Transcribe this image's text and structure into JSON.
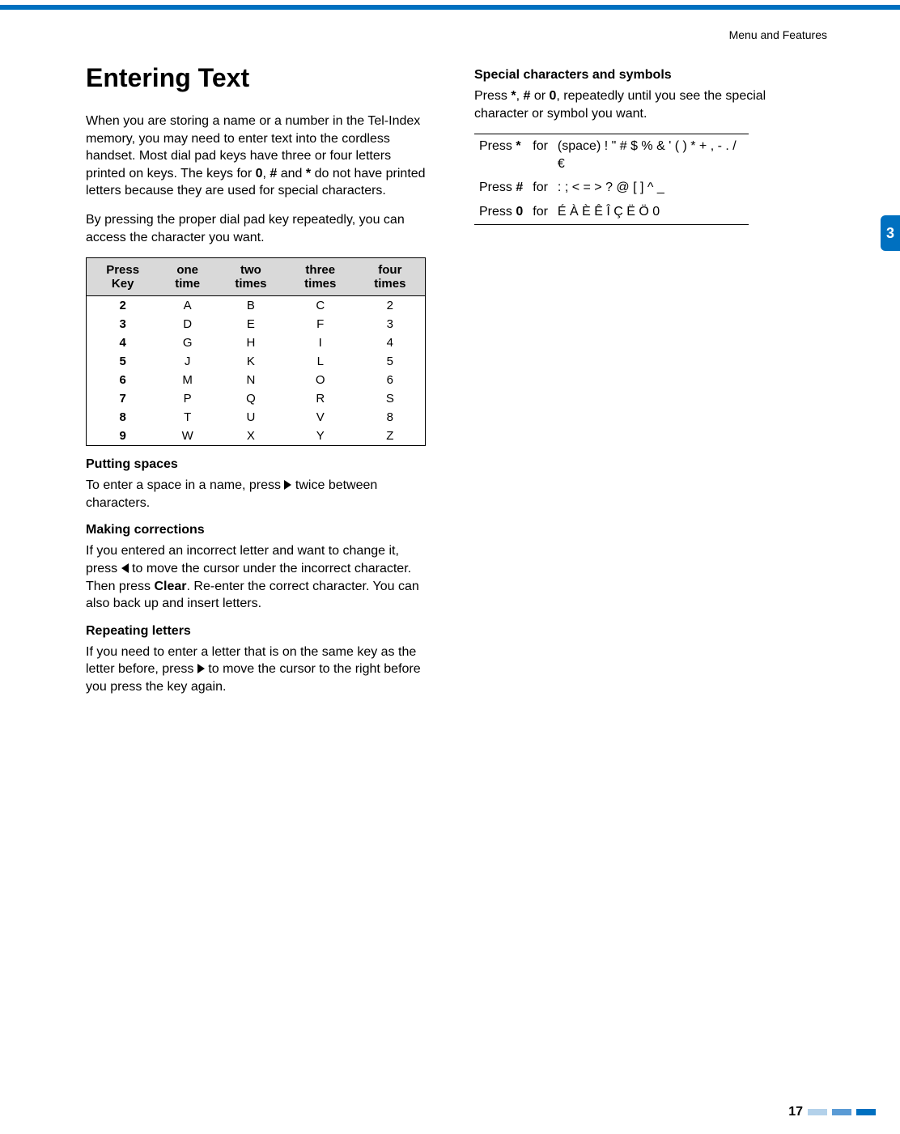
{
  "colors": {
    "accent": "#0070c0",
    "table_header_bg": "#d9d9d9",
    "text": "#000000",
    "background": "#ffffff",
    "pagebar_light": "#b3d1ea",
    "pagebar_mid": "#5a9bd5",
    "pagebar_dark": "#0070c0"
  },
  "header": {
    "section": "Menu and Features"
  },
  "side_tab": "3",
  "left": {
    "title": "Entering Text",
    "intro1": "When you are storing a name or a number in the Tel-Index memory, you may need to enter text into the cordless handset. Most dial pad keys have three or four letters printed on keys. The keys for 0, # and * do not have printed letters because they are used for special characters.",
    "intro2": "By pressing the proper dial pad key repeatedly, you can access the character you want.",
    "table": {
      "headers": [
        "Press Key",
        "one time",
        "two times",
        "three times",
        "four times"
      ],
      "rows": [
        [
          "2",
          "A",
          "B",
          "C",
          "2"
        ],
        [
          "3",
          "D",
          "E",
          "F",
          "3"
        ],
        [
          "4",
          "G",
          "H",
          "I",
          "4"
        ],
        [
          "5",
          "J",
          "K",
          "L",
          "5"
        ],
        [
          "6",
          "M",
          "N",
          "O",
          "6"
        ],
        [
          "7",
          "P",
          "Q",
          "R",
          "S"
        ],
        [
          "8",
          "T",
          "U",
          "V",
          "8"
        ],
        [
          "9",
          "W",
          "X",
          "Y",
          "Z"
        ]
      ]
    },
    "putting_spaces_head": "Putting spaces",
    "putting_spaces_pre": "To enter a space in a name, press ",
    "putting_spaces_post": " twice between characters.",
    "making_corrections_head": "Making corrections",
    "making_corrections_pre": "If you entered an incorrect letter and want to change it, press ",
    "making_corrections_post": " to move the cursor under the incorrect character. Then press Clear. Re-enter the correct character. You can also back up and insert letters.",
    "repeating_head": "Repeating letters",
    "repeating_pre": "If you need to enter a letter that is on the same key as the letter before, press ",
    "repeating_post": " to move the cursor to the right before you press the key again."
  },
  "right": {
    "special_head": "Special characters and symbols",
    "special_intro": "Press *, # or 0, repeatedly until you see the special character or symbol you want.",
    "rows": [
      {
        "key": "*",
        "word": "for",
        "chars": "(space) ! \" # $ % & ' ( ) * + , - . / €"
      },
      {
        "key": "#",
        "word": "for",
        "chars": ": ; < = > ? @ [ ] ^ _"
      },
      {
        "key": "0",
        "word": "for",
        "chars": "É À È Ê Î Ç Ë Ö 0"
      }
    ]
  },
  "page_number": "17"
}
